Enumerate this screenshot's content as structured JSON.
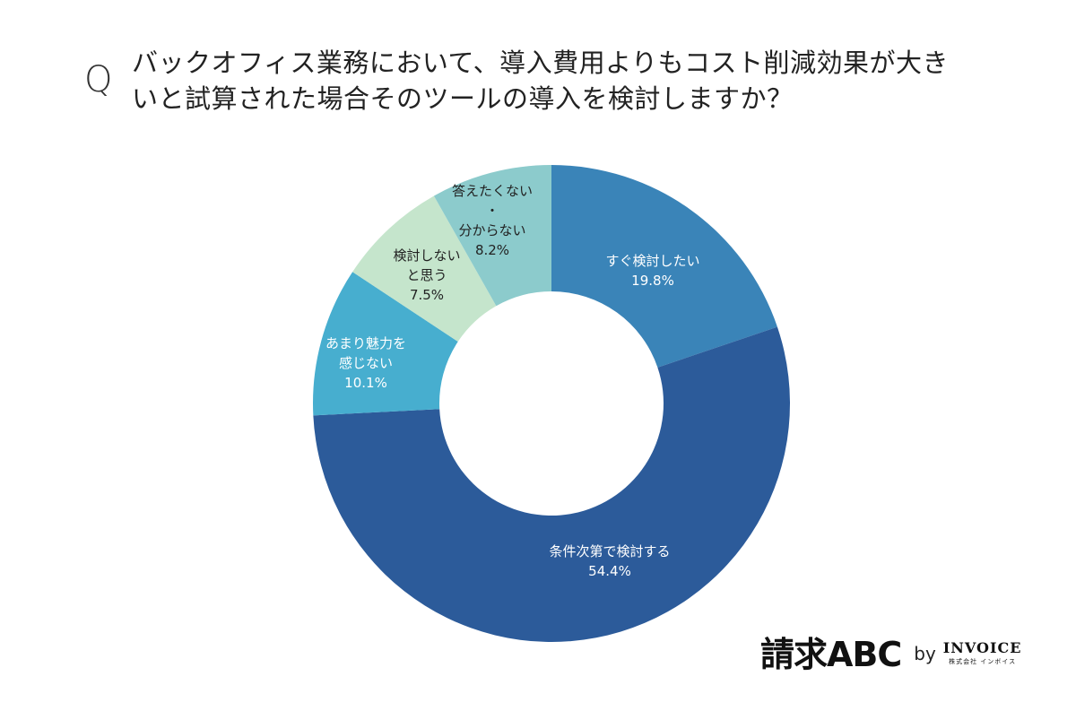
{
  "question": {
    "mark": "Q",
    "line1": "バックオフィス業務において、導入費用よりもコスト削減効果が大き",
    "line2": "いと試算された場合そのツールの導入を検討しますか？"
  },
  "logo": {
    "main": "請求ABC",
    "by": "by",
    "brand": "INVOICE",
    "sub": "株式会社 インボイス"
  },
  "chart_data": {
    "type": "pie",
    "variant": "donut",
    "title": "バックオフィス業務において、導入費用よりもコスト削減効果が大きいと試算された場合そのツールの導入を検討しますか？",
    "start_angle": "12 o'clock, clockwise",
    "categories": [
      "すぐ検討したい",
      "条件次第で検討する",
      "あまり魅力を感じない",
      "検討しないと思う",
      "答えたくない・分からない"
    ],
    "values": [
      19.8,
      54.4,
      10.1,
      7.5,
      8.2
    ],
    "unit": "%",
    "colors": [
      "#3a84b8",
      "#2c5b9a",
      "#47aecf",
      "#c5e5cc",
      "#8ccbcc"
    ],
    "labels": [
      {
        "lines": [
          "すぐ検討したい"
        ],
        "value": "19.8%",
        "text_color": "#ffffff"
      },
      {
        "lines": [
          "条件次第で検討する"
        ],
        "value": "54.4%",
        "text_color": "#ffffff"
      },
      {
        "lines": [
          "あまり魅力を",
          "感じない"
        ],
        "value": "10.1%",
        "text_color": "#ffffff"
      },
      {
        "lines": [
          "検討しない",
          "と思う"
        ],
        "value": "7.5%",
        "text_color": "#222222"
      },
      {
        "lines": [
          "答えたくない",
          "・",
          "分からない"
        ],
        "value": "8.2%",
        "text_color": "#222222"
      }
    ],
    "legend": "none (labels inside slices)"
  }
}
